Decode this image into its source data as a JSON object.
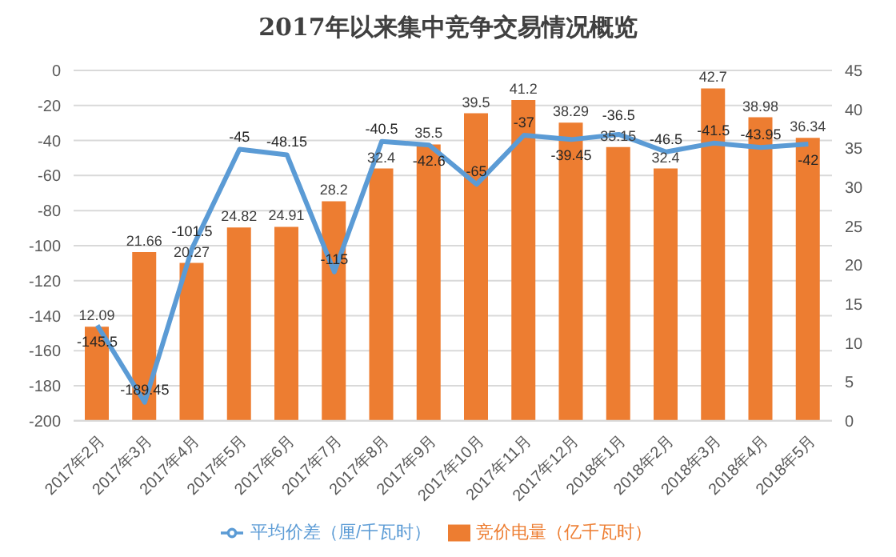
{
  "chart_data": {
    "type": "bar",
    "title": "2017年以来集中竞争交易情况概览",
    "categories": [
      "2017年2月",
      "2017年3月",
      "2017年4月",
      "2017年5月",
      "2017年6月",
      "2017年7月",
      "2017年8月",
      "2017年9月",
      "2017年10月",
      "2017年11月",
      "2017年12月",
      "2018年1月",
      "2018年2月",
      "2018年3月",
      "2018年4月",
      "2018年5月"
    ],
    "series": [
      {
        "name": "竞价电量（亿千瓦时）",
        "axis": "y2",
        "color": "#ed7d31",
        "values": [
          12.09,
          21.66,
          20.27,
          24.82,
          24.91,
          28.2,
          32.4,
          35.5,
          39.5,
          41.2,
          38.29,
          35.15,
          32.4,
          42.7,
          38.98,
          36.34
        ]
      },
      {
        "name": "平均价差（厘/千瓦时）",
        "type": "line",
        "axis": "y",
        "color": "#5b9bd5",
        "values": [
          -145.5,
          -189.45,
          -101.5,
          -45,
          -48.15,
          -115,
          -40.5,
          -42.6,
          -65,
          -37,
          -39.45,
          -36.5,
          -46.5,
          -41.5,
          -43.95,
          -42
        ]
      }
    ],
    "ylim": [
      -200,
      0
    ],
    "yticks": [
      -200,
      -180,
      -160,
      -140,
      -120,
      -100,
      -80,
      -60,
      -40,
      -20,
      0
    ],
    "y2lim": [
      0,
      45
    ],
    "y2ticks": [
      0,
      5,
      10,
      15,
      20,
      25,
      30,
      35,
      40,
      45
    ],
    "grid": "y",
    "legend": "bottom",
    "marker": "none",
    "data_labels": true
  }
}
